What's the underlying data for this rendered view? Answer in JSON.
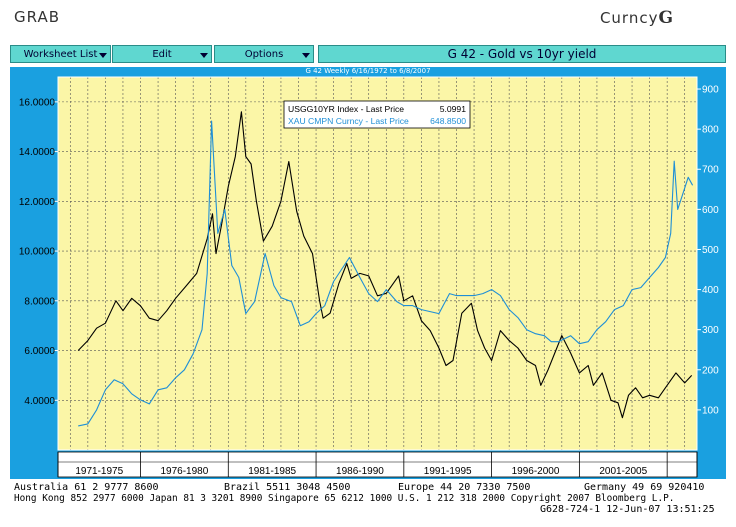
{
  "header": {
    "left": "GRAB",
    "right_text": "Curncy",
    "right_key": "G"
  },
  "toolbar": {
    "worksheet_label": "Worksheet List",
    "edit_label": "Edit",
    "options_label": "Options",
    "chart_title": "G 42 - Gold vs 10yr yield"
  },
  "colors": {
    "frame": "#1aa0e0",
    "plot_bg": "#fbf6a7",
    "yield": "#000000",
    "gold": "#1f8fd6",
    "button": "#5fd7d0"
  },
  "chart_data": {
    "type": "line",
    "title": "G 42 - Gold vs 10yr yield",
    "subtitle": "G 42 Weekly 6/16/1972 to 6/8/2007",
    "xlim": [
      1971.3,
      2007.7
    ],
    "periods": [
      "1971-1975",
      "1976-1980",
      "1981-1985",
      "1986-1990",
      "1991-1995",
      "1996-2000",
      "2001-2005"
    ],
    "period_bounds": [
      1971.3,
      1976.0,
      1981.0,
      1986.0,
      1991.0,
      1996.0,
      2001.0,
      2006.0,
      2007.7
    ],
    "y_left": {
      "lim": [
        2.0,
        17.0
      ],
      "ticks": [
        "4.0000",
        "6.0000",
        "8.0000",
        "10.0000",
        "12.0000",
        "14.0000",
        "16.0000"
      ],
      "tick_values": [
        4,
        6,
        8,
        10,
        12,
        14,
        16
      ]
    },
    "y_right": {
      "lim": [
        0,
        930
      ],
      "ticks": [
        "100",
        "200",
        "300",
        "400",
        "500",
        "600",
        "700",
        "800",
        "900"
      ],
      "tick_values": [
        100,
        200,
        300,
        400,
        500,
        600,
        700,
        800,
        900
      ]
    },
    "legend": {
      "position": "top-center",
      "entries": [
        {
          "label": "USGG10YR Index - Last Price",
          "value": "5.0991"
        },
        {
          "label": "XAU CMPN Curncy - Last Price",
          "value": "648.8500"
        }
      ]
    },
    "series": [
      {
        "name": "USGG10YR Index - Last Price",
        "axis": "left",
        "color": "#000000",
        "x": [
          1972.45,
          1973.0,
          1973.5,
          1974.0,
          1974.6,
          1975.0,
          1975.5,
          1976.0,
          1976.5,
          1977.0,
          1977.5,
          1978.0,
          1978.6,
          1979.2,
          1979.8,
          1980.1,
          1980.3,
          1980.6,
          1981.0,
          1981.4,
          1981.75,
          1982.0,
          1982.3,
          1982.6,
          1983.0,
          1983.5,
          1984.0,
          1984.45,
          1984.9,
          1985.3,
          1985.8,
          1986.2,
          1986.4,
          1986.8,
          1987.3,
          1987.75,
          1988.0,
          1988.5,
          1989.0,
          1989.5,
          1990.0,
          1990.7,
          1991.0,
          1991.5,
          1992.0,
          1992.5,
          1993.0,
          1993.4,
          1993.8,
          1994.3,
          1994.85,
          1995.2,
          1995.6,
          1996.0,
          1996.5,
          1997.0,
          1997.5,
          1998.0,
          1998.5,
          1998.8,
          1999.2,
          1999.6,
          2000.0,
          2000.5,
          2001.0,
          2001.5,
          2001.8,
          2002.3,
          2002.8,
          2003.2,
          2003.45,
          2003.8,
          2004.2,
          2004.6,
          2005.0,
          2005.5,
          2005.9,
          2006.5,
          2007.0,
          2007.4
        ],
        "y": [
          6.0,
          6.4,
          6.9,
          7.1,
          8.0,
          7.6,
          8.1,
          7.8,
          7.3,
          7.2,
          7.6,
          8.1,
          8.6,
          9.1,
          10.5,
          11.5,
          9.9,
          11.0,
          12.6,
          13.8,
          15.6,
          13.8,
          13.5,
          12.0,
          10.4,
          11.0,
          12.0,
          13.6,
          11.6,
          10.6,
          9.9,
          8.0,
          7.3,
          7.5,
          8.7,
          9.5,
          8.9,
          9.1,
          9.0,
          8.2,
          8.3,
          9.0,
          8.0,
          8.2,
          7.2,
          6.8,
          6.1,
          5.4,
          5.6,
          7.5,
          7.9,
          6.8,
          6.1,
          5.6,
          6.8,
          6.4,
          6.1,
          5.6,
          5.4,
          4.6,
          5.2,
          5.9,
          6.6,
          5.9,
          5.1,
          5.4,
          4.6,
          5.1,
          4.0,
          3.9,
          3.3,
          4.2,
          4.5,
          4.1,
          4.2,
          4.1,
          4.5,
          5.1,
          4.7,
          5.0
        ]
      },
      {
        "name": "XAU CMPN Curncy - Last Price",
        "axis": "right",
        "color": "#1f8fd6",
        "x": [
          1972.45,
          1973.0,
          1973.5,
          1974.0,
          1974.5,
          1975.0,
          1975.5,
          1976.0,
          1976.5,
          1977.0,
          1977.5,
          1978.0,
          1978.5,
          1979.0,
          1979.5,
          1979.8,
          1980.05,
          1980.4,
          1980.8,
          1981.2,
          1981.6,
          1982.0,
          1982.5,
          1983.1,
          1983.6,
          1984.0,
          1984.6,
          1985.1,
          1985.6,
          1986.0,
          1986.5,
          1987.0,
          1987.9,
          1988.5,
          1989.0,
          1989.5,
          1990.0,
          1990.6,
          1991.0,
          1991.5,
          1992.0,
          1992.5,
          1993.0,
          1993.6,
          1994.0,
          1994.5,
          1995.0,
          1995.5,
          1996.0,
          1996.5,
          1997.0,
          1997.5,
          1998.0,
          1998.5,
          1999.0,
          1999.4,
          1999.8,
          2000.5,
          2001.0,
          2001.5,
          2002.0,
          2002.5,
          2003.0,
          2003.5,
          2004.0,
          2004.5,
          2005.0,
          2005.5,
          2005.9,
          2006.2,
          2006.4,
          2006.6,
          2006.9,
          2007.2,
          2007.45
        ],
        "y": [
          60,
          65,
          100,
          150,
          175,
          165,
          140,
          125,
          115,
          150,
          155,
          180,
          200,
          240,
          300,
          440,
          820,
          540,
          600,
          460,
          430,
          340,
          370,
          490,
          410,
          380,
          370,
          310,
          320,
          340,
          360,
          420,
          480,
          430,
          390,
          370,
          400,
          370,
          360,
          360,
          350,
          345,
          340,
          390,
          385,
          385,
          385,
          390,
          400,
          385,
          350,
          330,
          300,
          290,
          285,
          270,
          270,
          285,
          265,
          270,
          300,
          320,
          350,
          360,
          400,
          405,
          430,
          455,
          480,
          540,
          720,
          600,
          640,
          680,
          660
        ]
      }
    ]
  },
  "footer": {
    "line1_left": "Australia 61 2 9777 8600",
    "line1_mid": "Brazil 5511 3048 4500",
    "line1_mid2": "Europe 44 20 7330 7500",
    "line1_right": "Germany 49 69 920410",
    "line2": "Hong Kong 852 2977 6000 Japan 81 3 3201 8900 Singapore 65 6212 1000 U.S. 1 212 318 2000 Copyright 2007 Bloomberg L.P.",
    "line3": "G628-724-1 12-Jun-07 13:51:25"
  }
}
